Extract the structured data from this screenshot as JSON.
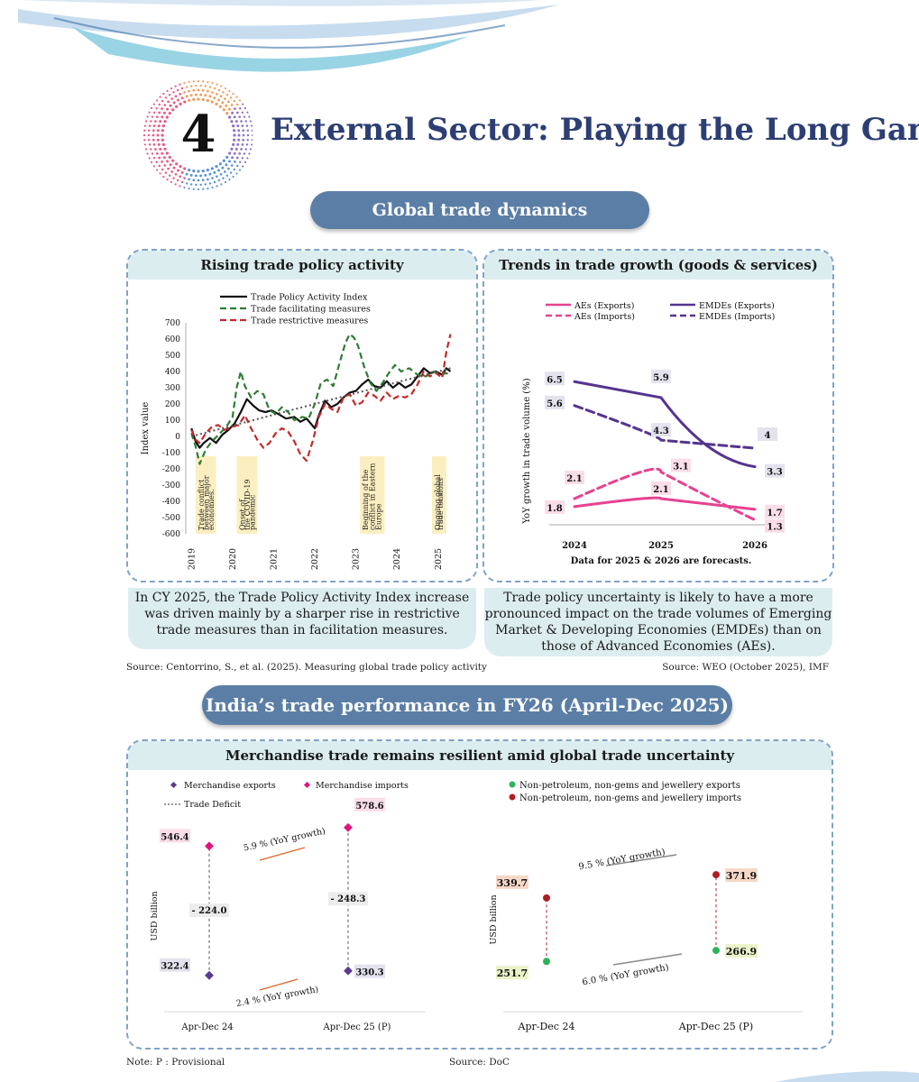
{
  "header": {
    "chapter_number": "4",
    "chapter_title": "External Sector: Playing the Long Game"
  },
  "section1": {
    "banner": "Global trade dynamics"
  },
  "panel_left": {
    "title": "Rising trade policy activity",
    "caption": "In CY 2025, the Trade Policy Activity Index increase was driven mainly by a sharper rise in restrictive trade measures than in facilitation measures.",
    "source": "Source: Centorrino, S., et al. (2025). Measuring global trade policy activity"
  },
  "panel_right": {
    "title": "Trends in trade growth (goods & services)",
    "caption": "Trade policy uncertainty is likely to have a more pronounced impact on the trade volumes of Emerging Market & Developing Economies (EMDEs) than on those of Advanced Economies (AEs).",
    "source": "Source: WEO (October 2025), IMF"
  },
  "section2": {
    "banner": "India’s trade performance in FY26 (April-Dec 2025)"
  },
  "panel_bottom": {
    "title": "Merchandise trade remains resilient amid global trade uncertainty",
    "note": "Note: P : Provisional",
    "source": "Source: DoC"
  },
  "chart_data": [
    {
      "type": "line",
      "ylabel": "Index value",
      "ylim": [
        -600,
        700
      ],
      "yticks": [
        "700",
        "600",
        "500",
        "400",
        "300",
        "200",
        "100",
        "0",
        "-100",
        "-200",
        "-300",
        "-400",
        "-500",
        "-600"
      ],
      "xticks": [
        "2019",
        "2020",
        "2021",
        "2022",
        "2023",
        "2024",
        "2025"
      ],
      "legend_position": "top",
      "series": [
        {
          "name": "Trade Policy Activity Index",
          "color": "#111111",
          "dash": "solid",
          "x": [
            2019.0,
            2019.1,
            2019.2,
            2019.3,
            2019.45,
            2019.6,
            2019.75,
            2019.9,
            2020.05,
            2020.2,
            2020.35,
            2020.5,
            2020.65,
            2020.8,
            2020.95,
            2021.1,
            2021.3,
            2021.5,
            2021.65,
            2021.8,
            2022.0,
            2022.1,
            2022.25,
            2022.4,
            2022.55,
            2022.7,
            2022.85,
            2023.0,
            2023.15,
            2023.3,
            2023.45,
            2023.6,
            2023.75,
            2023.9,
            2024.05,
            2024.2,
            2024.35,
            2024.5,
            2024.65,
            2024.8,
            2024.95,
            2025.1,
            2025.2,
            2025.3
          ],
          "y": [
            50,
            -30,
            -70,
            -40,
            -10,
            -40,
            10,
            40,
            80,
            150,
            230,
            190,
            160,
            150,
            160,
            140,
            110,
            120,
            90,
            110,
            50,
            130,
            220,
            180,
            200,
            240,
            270,
            280,
            320,
            350,
            310,
            300,
            340,
            300,
            330,
            300,
            320,
            370,
            420,
            390,
            400,
            380,
            420,
            400
          ]
        },
        {
          "name": "Trade facilitating measures",
          "color": "#2e7d32",
          "dash": "dashed",
          "x": [
            2019.0,
            2019.1,
            2019.2,
            2019.35,
            2019.5,
            2019.7,
            2019.85,
            2020.0,
            2020.1,
            2020.2,
            2020.3,
            2020.45,
            2020.6,
            2020.75,
            2020.9,
            2021.05,
            2021.2,
            2021.35,
            2021.5,
            2021.7,
            2021.85,
            2022.0,
            2022.15,
            2022.3,
            2022.45,
            2022.6,
            2022.75,
            2022.85,
            2022.95,
            2023.05,
            2023.2,
            2023.35,
            2023.5,
            2023.65,
            2023.8,
            2023.95,
            2024.1,
            2024.3,
            2024.5,
            2024.7,
            2024.9,
            2025.05,
            2025.2,
            2025.3
          ],
          "y": [
            20,
            -60,
            -170,
            -80,
            -30,
            20,
            60,
            120,
            300,
            400,
            310,
            240,
            280,
            260,
            160,
            140,
            180,
            150,
            100,
            120,
            110,
            200,
            330,
            350,
            310,
            450,
            580,
            630,
            610,
            560,
            430,
            330,
            280,
            330,
            390,
            440,
            400,
            420,
            380,
            370,
            400,
            380,
            390,
            370
          ]
        },
        {
          "name": "Trade restrictive measures",
          "color": "#c62828",
          "dash": "dashed",
          "x": [
            2019.0,
            2019.1,
            2019.2,
            2019.35,
            2019.5,
            2019.65,
            2019.8,
            2020.0,
            2020.15,
            2020.3,
            2020.45,
            2020.6,
            2020.75,
            2020.9,
            2021.05,
            2021.2,
            2021.35,
            2021.5,
            2021.65,
            2021.8,
            2021.95,
            2022.1,
            2022.25,
            2022.4,
            2022.55,
            2022.7,
            2022.85,
            2023.0,
            2023.15,
            2023.3,
            2023.45,
            2023.6,
            2023.75,
            2023.9,
            2024.05,
            2024.2,
            2024.35,
            2024.5,
            2024.65,
            2024.8,
            2024.95,
            2025.1,
            2025.2,
            2025.3
          ],
          "y": [
            40,
            -20,
            -40,
            20,
            60,
            70,
            40,
            60,
            70,
            130,
            50,
            -20,
            -70,
            -40,
            20,
            50,
            30,
            -30,
            -110,
            -150,
            -30,
            120,
            200,
            170,
            150,
            240,
            260,
            190,
            210,
            270,
            250,
            220,
            270,
            230,
            250,
            240,
            260,
            320,
            400,
            370,
            390,
            360,
            520,
            630
          ]
        },
        {
          "name": "",
          "color": "#555555",
          "dash": "dotted",
          "x": [
            2019.0,
            2025.3
          ],
          "y": [
            0,
            420
          ]
        }
      ],
      "annotations": [
        "Trade conflict between major economies.",
        "Onset of the COVID-19 pandemic",
        "Beginning of the conflict in Eastern Europe",
        "Ongoing global trade tensions"
      ]
    },
    {
      "type": "line",
      "ylabel": "YoY growth in trade volume (%)",
      "xlabel": "Data for 2025 & 2026 are forecasts.",
      "categories": [
        "2024",
        "2025",
        "2026"
      ],
      "legend_position": "top",
      "series": [
        {
          "name": "AEs (Exports)",
          "color": "#e6428f",
          "dash": "solid",
          "values": [
            1.8,
            2.1,
            1.7
          ],
          "labels": [
            "1.8",
            "2.1",
            "1.7"
          ]
        },
        {
          "name": "AEs (Imports)",
          "color": "#e6428f",
          "dash": "dashed",
          "values": [
            2.1,
            3.1,
            1.3
          ],
          "labels": [
            "2.1",
            "3.1",
            "1.3"
          ]
        },
        {
          "name": "EMDEs (Exports)",
          "color": "#55348f",
          "dash": "solid",
          "values": [
            6.5,
            5.9,
            3.3
          ],
          "labels": [
            "6.5",
            "5.9",
            "3.3"
          ]
        },
        {
          "name": "EMDEs (Imports)",
          "color": "#55348f",
          "dash": "dashed",
          "values": [
            5.6,
            4.3,
            4.0
          ],
          "labels": [
            "5.6",
            "4.3",
            "4"
          ]
        }
      ]
    },
    {
      "type": "scatter",
      "ylabel": "USD billion",
      "categories": [
        "Apr-Dec 24",
        "Apr-Dec 25  (P)"
      ],
      "legend_position": "top",
      "series": [
        {
          "name": "Merchandise exports",
          "color": "#5b3a93",
          "values": [
            322.4,
            330.3
          ],
          "labels": [
            "322.4",
            "330.3"
          ]
        },
        {
          "name": "Merchandise imports",
          "color": "#e0157c",
          "values": [
            546.4,
            578.6
          ],
          "labels": [
            "546.4",
            "578.6"
          ]
        }
      ],
      "deficit": {
        "name": "Trade Deficit",
        "labels": [
          "- 224.0",
          "- 248.3"
        ]
      },
      "growth_labels": [
        "5.9 % (YoY growth)",
        "2.4 % (YoY growth)"
      ]
    },
    {
      "type": "scatter",
      "ylabel": "USD billion",
      "categories": [
        "Apr-Dec 24",
        "Apr-Dec 25 (P)"
      ],
      "legend_position": "top",
      "series": [
        {
          "name": "Non-petroleum, non-gems and jewellery exports",
          "color": "#2fb35a",
          "values": [
            251.7,
            266.9
          ],
          "labels": [
            "251.7",
            "266.9"
          ]
        },
        {
          "name": "Non-petroleum, non-gems and jewellery imports",
          "color": "#b01c24",
          "values": [
            339.7,
            371.9
          ],
          "labels": [
            "339.7",
            "371.9"
          ]
        }
      ],
      "growth_labels": [
        "9.5 % (YoY growth)",
        "6.0 % (YoY growth)"
      ]
    }
  ]
}
